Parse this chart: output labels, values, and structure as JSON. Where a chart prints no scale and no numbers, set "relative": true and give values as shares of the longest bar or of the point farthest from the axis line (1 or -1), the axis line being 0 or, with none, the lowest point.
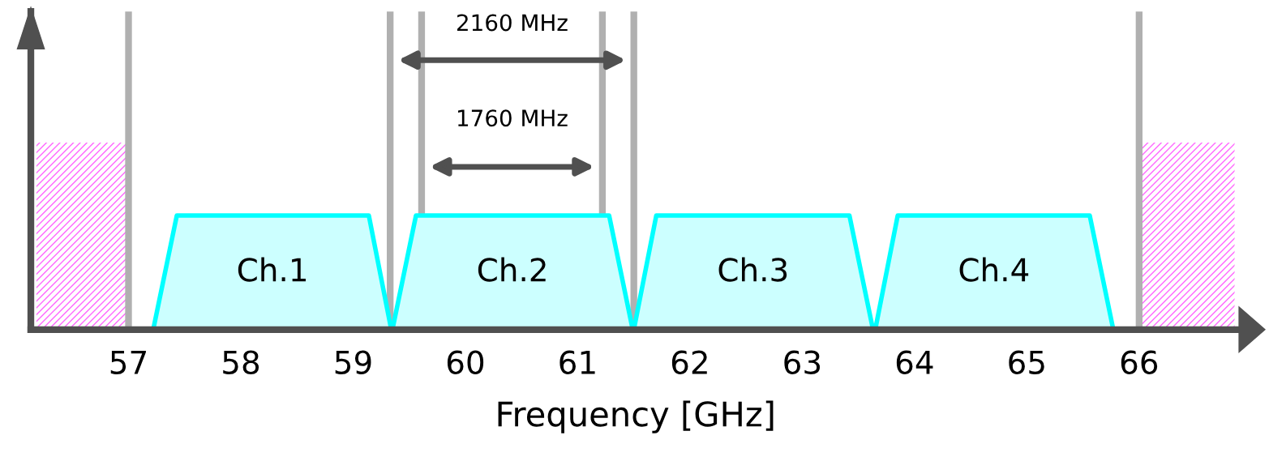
{
  "chart_data": {
    "type": "area",
    "relative": true,
    "xlabel": "Frequency [GHz]",
    "xlim": [
      56.13,
      66.9
    ],
    "xticks": [
      57,
      58,
      59,
      60,
      61,
      62,
      63,
      64,
      65,
      66
    ],
    "series": [
      {
        "color": "#ff66ff",
        "x": [
          56.18,
          57
        ],
        "values": [
          1,
          1
        ]
      },
      {
        "color": "#ff66ff",
        "x": [
          66.03,
          66.85
        ],
        "values": [
          1,
          1
        ]
      },
      {
        "name": "Ch.1",
        "color": "#00ffff",
        "x": [
          57.22,
          57.43,
          59.14,
          59.34
        ],
        "values": [
          0,
          0.61,
          0.61,
          0
        ]
      },
      {
        "name": "Ch.2",
        "color": "#00ffff",
        "x": [
          59.35,
          59.56,
          61.28,
          61.49
        ],
        "values": [
          0,
          0.61,
          0.61,
          0
        ]
      },
      {
        "name": "Ch.3",
        "color": "#00ffff",
        "x": [
          61.5,
          61.7,
          63.42,
          63.63
        ],
        "values": [
          0,
          0.61,
          0.61,
          0
        ]
      },
      {
        "name": "Ch.4",
        "color": "#00ffff",
        "x": [
          63.65,
          63.85,
          65.56,
          65.77
        ],
        "values": [
          0,
          0.61,
          0.61,
          0
        ]
      }
    ],
    "ref_lines": [
      {
        "axis": "x",
        "value": 57,
        "color": "#b0b0b0"
      },
      {
        "axis": "x",
        "value": 66,
        "color": "#b0b0b0"
      },
      {
        "axis": "x",
        "value": 59.33,
        "color": "#b0b0b0"
      },
      {
        "axis": "x",
        "value": 61.5,
        "color": "#b0b0b0"
      },
      {
        "axis": "x",
        "value": 59.61,
        "color": "#b0b0b0"
      },
      {
        "axis": "x",
        "value": 61.22,
        "color": "#b0b0b0"
      }
    ],
    "annotations": [
      "2160 MHz",
      "1760 MHz"
    ]
  }
}
